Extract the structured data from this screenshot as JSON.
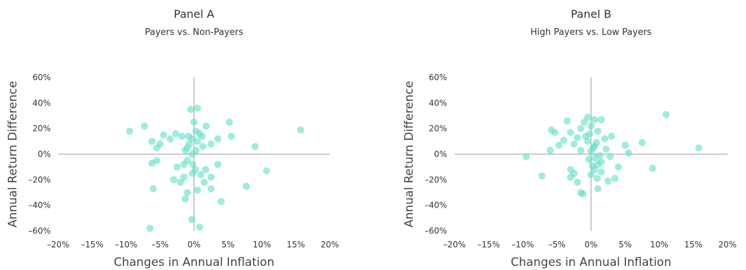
{
  "chart_data": [
    {
      "type": "scatter",
      "title": "Panel A",
      "subtitle": "Payers vs. Non-Payers",
      "xlabel": "Changes in Annual Inflation",
      "ylabel": "Annual Return Difference",
      "xlim": [
        -20,
        20
      ],
      "ylim": [
        -60,
        60
      ],
      "xticks": [
        "–20%",
        "–15%",
        "–10%",
        "–5%",
        "0%",
        "5%",
        "10%",
        "15%",
        "20%"
      ],
      "yticks": [
        "60%",
        "40%",
        "20%",
        "0%",
        "–20%",
        "–40%",
        "–60%"
      ],
      "grid": false,
      "point_color": "#5fe0c4",
      "points": [
        [
          -9.5,
          18
        ],
        [
          -7.3,
          22
        ],
        [
          -6.2,
          10
        ],
        [
          -5.5,
          5
        ],
        [
          -5.0,
          8
        ],
        [
          -4.5,
          15
        ],
        [
          -3.5,
          12
        ],
        [
          -2.7,
          16
        ],
        [
          -1.8,
          14
        ],
        [
          -0.8,
          14
        ],
        [
          -0.3,
          12
        ],
        [
          0.5,
          10
        ],
        [
          1.2,
          14
        ],
        [
          1.8,
          22
        ],
        [
          2.5,
          8
        ],
        [
          3.5,
          12
        ],
        [
          5.5,
          14
        ],
        [
          5.2,
          25
        ],
        [
          9.0,
          6
        ],
        [
          15.7,
          19
        ],
        [
          -0.5,
          35
        ],
        [
          0.5,
          36
        ],
        [
          -1.0,
          5
        ],
        [
          -0.3,
          0
        ],
        [
          0.3,
          3
        ],
        [
          -1.0,
          -5
        ],
        [
          -1.5,
          -8
        ],
        [
          -2.5,
          -10
        ],
        [
          -3.0,
          -20
        ],
        [
          -2.0,
          -22
        ],
        [
          -1.5,
          -18
        ],
        [
          -1.0,
          -30
        ],
        [
          -1.3,
          -35
        ],
        [
          0.5,
          -28
        ],
        [
          1.0,
          -16
        ],
        [
          1.5,
          -22
        ],
        [
          2.5,
          -18
        ],
        [
          2.5,
          -27
        ],
        [
          3.5,
          -8
        ],
        [
          4.0,
          -37
        ],
        [
          7.7,
          -25
        ],
        [
          10.7,
          -13
        ],
        [
          -6.0,
          -27
        ],
        [
          -6.2,
          -7
        ],
        [
          -5.5,
          -5
        ],
        [
          -6.5,
          -58
        ],
        [
          -0.3,
          -51
        ],
        [
          0.8,
          -57
        ],
        [
          -0.2,
          -8
        ],
        [
          0.2,
          -12
        ],
        [
          0.3,
          18
        ],
        [
          0.8,
          16
        ],
        [
          1.3,
          6
        ],
        [
          -0.7,
          8
        ],
        [
          -1.3,
          3
        ],
        [
          0.0,
          25
        ],
        [
          -0.2,
          -15
        ],
        [
          1.7,
          -12
        ]
      ]
    },
    {
      "type": "scatter",
      "title": "Panel B",
      "subtitle": "High Payers vs. Low Payers",
      "xlabel": "Changes in Annual Inflation",
      "ylabel": "Annual Return Difference",
      "xlim": [
        -20,
        20
      ],
      "ylim": [
        -60,
        60
      ],
      "xticks": [
        "–20%",
        "–15%",
        "–10%",
        "–5%",
        "0%",
        "5%",
        "10%",
        "15%",
        "20%"
      ],
      "yticks": [
        "60%",
        "40%",
        "20%",
        "0%",
        "–20%",
        "–40%",
        "–60%"
      ],
      "grid": false,
      "point_color": "#5fe0c4",
      "points": [
        [
          -9.5,
          -2
        ],
        [
          -7.2,
          -17
        ],
        [
          -6.0,
          3
        ],
        [
          -5.8,
          19
        ],
        [
          -5.3,
          17
        ],
        [
          -4.7,
          7
        ],
        [
          -4.0,
          11
        ],
        [
          -3.5,
          26
        ],
        [
          -3.0,
          17
        ],
        [
          -2.5,
          8
        ],
        [
          -2.0,
          13
        ],
        [
          -1.5,
          20
        ],
        [
          -1.0,
          25
        ],
        [
          -0.5,
          29
        ],
        [
          0.0,
          22
        ],
        [
          0.5,
          27
        ],
        [
          1.0,
          18
        ],
        [
          1.5,
          27
        ],
        [
          2.0,
          12
        ],
        [
          3.0,
          14
        ],
        [
          5.0,
          7
        ],
        [
          5.5,
          1
        ],
        [
          7.5,
          9
        ],
        [
          11.0,
          31
        ],
        [
          15.8,
          5
        ],
        [
          9.0,
          -11
        ],
        [
          -3.0,
          -12
        ],
        [
          -2.5,
          -15
        ],
        [
          -3.0,
          -18
        ],
        [
          -2.0,
          -22
        ],
        [
          -1.5,
          -30
        ],
        [
          -1.2,
          -31
        ],
        [
          0.0,
          -16
        ],
        [
          0.5,
          -12
        ],
        [
          1.0,
          -27
        ],
        [
          1.5,
          -14
        ],
        [
          2.5,
          -21
        ],
        [
          3.5,
          -19
        ],
        [
          4.0,
          -10
        ],
        [
          0.3,
          5
        ],
        [
          0.6,
          -3
        ],
        [
          1.0,
          -8
        ],
        [
          1.5,
          -6
        ],
        [
          -0.5,
          10
        ],
        [
          0.0,
          2
        ],
        [
          0.5,
          6
        ],
        [
          -0.3,
          -4
        ],
        [
          0.8,
          9
        ],
        [
          -1.5,
          3
        ],
        [
          -0.8,
          14
        ],
        [
          1.3,
          -1
        ],
        [
          2.2,
          4
        ],
        [
          2.8,
          -2
        ],
        [
          0.2,
          -9
        ],
        [
          -0.2,
          16
        ],
        [
          0.9,
          -19
        ]
      ]
    }
  ]
}
